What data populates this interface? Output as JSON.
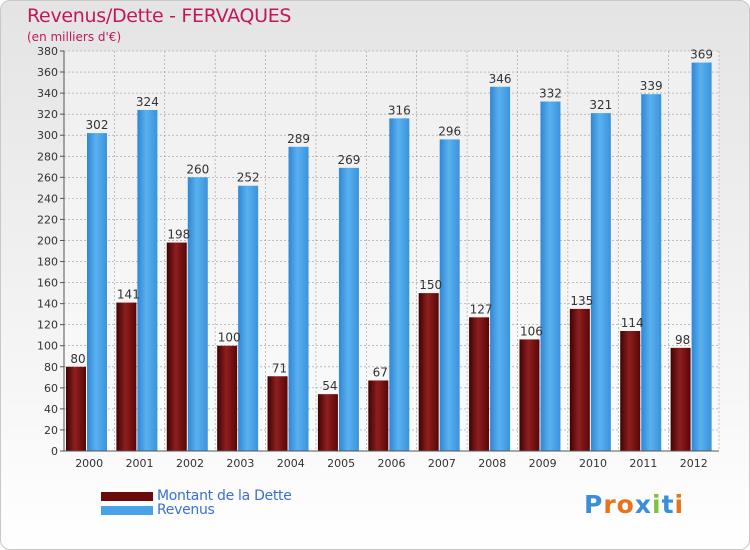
{
  "chart_data": {
    "type": "bar",
    "title": "Revenus/Dette - FERVAQUES",
    "subtitle": "(en milliers d'€)",
    "categories": [
      "2000",
      "2001",
      "2002",
      "2003",
      "2004",
      "2005",
      "2006",
      "2007",
      "2008",
      "2009",
      "2010",
      "2011",
      "2012"
    ],
    "series": [
      {
        "name": "Montant de la Dette",
        "color": "#7a1010",
        "values": [
          80,
          141,
          198,
          100,
          71,
          54,
          67,
          150,
          127,
          106,
          135,
          114,
          98
        ]
      },
      {
        "name": "Revenus",
        "color": "#3b9ae1",
        "values": [
          302,
          324,
          260,
          252,
          289,
          269,
          316,
          296,
          346,
          332,
          321,
          339,
          369
        ]
      }
    ],
    "ylim": [
      0,
      380
    ],
    "ytick_step": 20,
    "grid": true,
    "legend": "bottom-left"
  },
  "legend": {
    "debt_label": "Montant de la Dette",
    "revenue_label": "Revenus",
    "debt_color": "#6b0a0a",
    "revenue_color": "#4aa3e8"
  },
  "logo": {
    "text": "Proxiti",
    "colors": [
      "#3b8ed8",
      "#e8731a",
      "#e8731a",
      "#3b8ed8",
      "#7cc242",
      "#3b8ed8",
      "#e8731a"
    ]
  }
}
